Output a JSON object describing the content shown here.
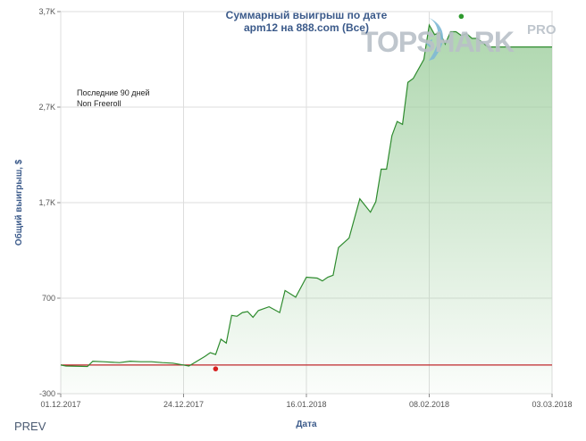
{
  "brand": {
    "logo_text": "TOPSHARK",
    "logo_badge": "PRO"
  },
  "nav": {
    "prev_label": "PREV"
  },
  "chart_data": {
    "type": "area",
    "title": "Суммарный выигрыш по дате",
    "subtitle": "apm12 на 888.com (Все)",
    "xlabel": "Дата",
    "ylabel": "Общий выигрыш, $",
    "annotations": [
      "Последние 90 дней",
      "Non Freeroll"
    ],
    "ylim": [
      -300,
      3700
    ],
    "yticks": [
      -300,
      700,
      1700,
      2700,
      3700
    ],
    "ytick_labels": [
      "-300",
      "700",
      "1,7K",
      "2,7K",
      "3,7K"
    ],
    "xlim": [
      "2017-12-01",
      "2018-03-03"
    ],
    "xticks": [
      "2017-12-01",
      "2017-12-24",
      "2018-01-16",
      "2018-02-08",
      "2018-03-03"
    ],
    "xtick_labels": [
      "01.12.2017",
      "24.12.2017",
      "16.01.2018",
      "08.02.2018",
      "03.03.2018"
    ],
    "grid": true,
    "baseline": 0,
    "colors": {
      "line": "#2e8b2e",
      "fill": "#9fcf9f",
      "baseline": "#c0282d",
      "min_marker": "#d61f1f",
      "max_marker": "#2e9a2e",
      "grid": "#dddddd",
      "axis_text": "#555555",
      "title": "#3b5a8a"
    },
    "series": [
      {
        "x": [
          "2017-12-01",
          "2017-12-02",
          "2017-12-06",
          "2017-12-07",
          "2017-12-09",
          "2017-12-12",
          "2017-12-14",
          "2017-12-16",
          "2017-12-18",
          "2017-12-20",
          "2017-12-22",
          "2017-12-25",
          "2017-12-28",
          "2017-12-29",
          "2017-12-30",
          "2017-12-31",
          "2018-01-01",
          "2018-01-02",
          "2018-01-03",
          "2018-01-04",
          "2018-01-05",
          "2018-01-06",
          "2018-01-07",
          "2018-01-09",
          "2018-01-11",
          "2018-01-12",
          "2018-01-14",
          "2018-01-16",
          "2018-01-18",
          "2018-01-19",
          "2018-01-20",
          "2018-01-21",
          "2018-01-22",
          "2018-01-24",
          "2018-01-26",
          "2018-01-28",
          "2018-01-29",
          "2018-01-30",
          "2018-01-31",
          "2018-02-01",
          "2018-02-02",
          "2018-02-03",
          "2018-02-04",
          "2018-02-05",
          "2018-02-07",
          "2018-02-08",
          "2018-02-09",
          "2018-02-10",
          "2018-02-11",
          "2018-02-12",
          "2018-02-13",
          "2018-02-14",
          "2018-02-15",
          "2018-02-16",
          "2018-02-17",
          "2018-02-19",
          "2018-02-21",
          "2018-02-25",
          "2018-02-27",
          "2018-02-28",
          "2018-03-01",
          "2018-03-02",
          "2018-03-03"
        ],
        "y": [
          0,
          -10,
          -15,
          40,
          35,
          25,
          40,
          35,
          35,
          25,
          20,
          -10,
          90,
          130,
          110,
          270,
          230,
          520,
          510,
          550,
          560,
          500,
          570,
          610,
          550,
          780,
          710,
          920,
          910,
          880,
          920,
          940,
          1230,
          1330,
          1740,
          1600,
          1710,
          2050,
          2050,
          2400,
          2550,
          2520,
          2960,
          3000,
          3200,
          3560,
          3460,
          3480,
          3360,
          3490,
          3490,
          3450,
          3470,
          3420,
          3420,
          3330,
          3330,
          3330,
          3330,
          3330,
          3330,
          3330,
          3330
        ],
        "min_point": {
          "x": "2017-12-30",
          "y": -40
        },
        "max_point": {
          "x": "2018-02-14",
          "y": 3650
        }
      }
    ]
  }
}
